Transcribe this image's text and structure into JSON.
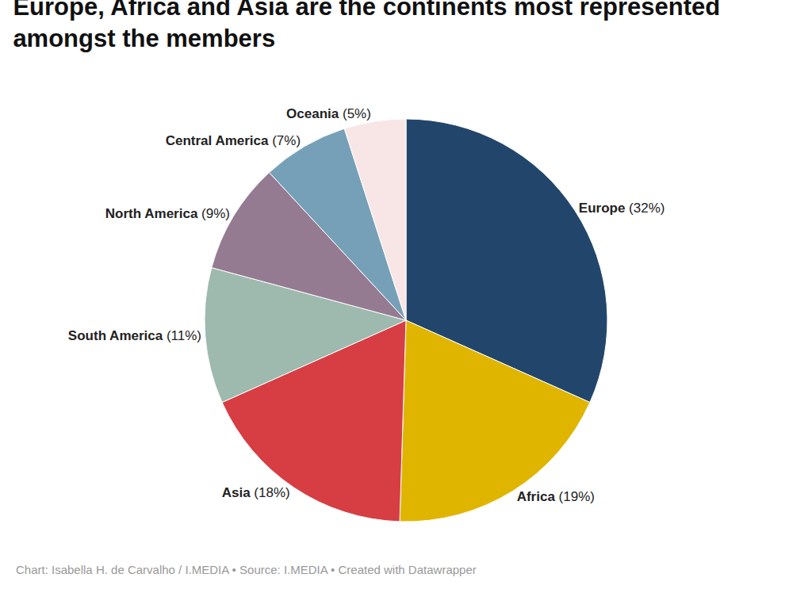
{
  "chart_data": {
    "type": "pie",
    "title": "Europe, Africa and Asia are the continents most represented amongst the members",
    "categories": [
      "Europe",
      "Africa",
      "Asia",
      "South America",
      "North America",
      "Central America",
      "Oceania"
    ],
    "values": [
      32,
      19,
      18,
      11,
      9,
      7,
      5
    ],
    "value_labels": [
      "(32%)",
      "(19%)",
      "(18%)",
      "(11%)",
      "(9%)",
      "(7%)",
      "(5%)"
    ],
    "colors": [
      "#22466b",
      "#e0b500",
      "#d63e44",
      "#9eb9ae",
      "#957b92",
      "#76a0b7",
      "#f8e6e6"
    ],
    "data_labels": true,
    "annotations": [
      "Chart: Isabella H. de Carvalho / I.MEDIA • Source: I.MEDIA • Created with Datawrapper"
    ]
  }
}
